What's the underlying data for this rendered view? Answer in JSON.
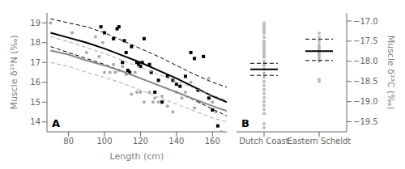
{
  "chart_data": [
    {
      "type": "scatter",
      "annotation": "A",
      "xlabel": "Length (cm)",
      "ylabel": "Muscle δ¹⁵N (‰)",
      "xlim": [
        68,
        168
      ],
      "ylim": [
        13.5,
        19.5
      ],
      "xticks": [
        80,
        100,
        120,
        140,
        160
      ],
      "yticks": [
        14,
        15,
        16,
        17,
        18,
        19
      ],
      "grid": false,
      "series": [
        {
          "type": "scatter",
          "marker": "circle",
          "color": "#aaaaaa",
          "x": [
            70,
            82,
            90,
            95,
            97,
            99,
            100,
            103,
            105,
            106,
            108,
            110,
            112,
            114,
            115,
            117,
            118,
            120,
            122,
            125,
            127,
            128,
            130,
            132,
            135,
            138,
            140,
            143,
            145,
            148,
            150,
            153,
            158,
            160,
            162,
            165
          ],
          "values": [
            19.0,
            18.5,
            17.5,
            18.3,
            17.3,
            18.0,
            16.5,
            16.5,
            16.9,
            16.5,
            16.6,
            16.8,
            16.4,
            16.5,
            15.4,
            16.5,
            15.5,
            15.5,
            15.0,
            15.5,
            15.0,
            15.2,
            15.0,
            15.3,
            14.8,
            14.5,
            15.5,
            15.2,
            15.5,
            16.0,
            14.7,
            15.0,
            16.2,
            15.0,
            14.5,
            13.5
          ]
        },
        {
          "type": "scatter",
          "marker": "square",
          "color": "#000000",
          "x": [
            98,
            100,
            105,
            107,
            108,
            110,
            111,
            112,
            113,
            114,
            115,
            118,
            119,
            120,
            121,
            122,
            125,
            126,
            128,
            130,
            132,
            135,
            138,
            140,
            142,
            145,
            148,
            150,
            152,
            155,
            158,
            160,
            163
          ],
          "values": [
            18.8,
            18.5,
            18.2,
            18.7,
            18.8,
            17.0,
            18.1,
            17.5,
            16.6,
            16.5,
            17.8,
            17.0,
            16.9,
            16.8,
            17.0,
            18.2,
            16.9,
            16.5,
            15.5,
            16.1,
            15.0,
            16.3,
            16.1,
            15.9,
            15.8,
            16.3,
            17.5,
            17.2,
            15.6,
            17.3,
            15.2,
            14.6,
            13.8
          ]
        },
        {
          "type": "line",
          "line_style": "solid",
          "color": "#000000",
          "x": [
            70,
            80,
            90,
            100,
            110,
            120,
            130,
            140,
            150,
            160,
            168
          ],
          "values": [
            18.5,
            18.25,
            18.0,
            17.7,
            17.35,
            17.0,
            16.6,
            16.2,
            15.75,
            15.3,
            15.0
          ]
        },
        {
          "type": "line",
          "line_style": "dashed",
          "color": "#000000",
          "x": [
            70,
            80,
            90,
            100,
            110,
            120,
            130,
            140,
            150,
            160,
            168
          ],
          "values": [
            19.2,
            19.0,
            18.8,
            18.5,
            18.1,
            17.7,
            17.3,
            16.85,
            16.4,
            16.0,
            15.75
          ]
        },
        {
          "type": "line",
          "line_style": "dashed",
          "color": "#000000",
          "x": [
            70,
            80,
            90,
            100,
            110,
            120,
            130,
            140,
            150,
            160,
            168
          ],
          "values": [
            17.8,
            17.5,
            17.2,
            16.9,
            16.55,
            16.2,
            15.85,
            15.5,
            15.1,
            14.65,
            14.3
          ]
        },
        {
          "type": "line",
          "line_style": "solid",
          "color": "#888888",
          "x": [
            70,
            80,
            90,
            100,
            110,
            120,
            130,
            140,
            150,
            160,
            168
          ],
          "values": [
            17.6,
            17.4,
            17.1,
            16.85,
            16.55,
            16.2,
            15.85,
            15.5,
            15.15,
            14.8,
            14.55
          ]
        },
        {
          "type": "line",
          "line_style": "dashed",
          "color": "#aaaaaa",
          "x": [
            70,
            80,
            90,
            100,
            110,
            120,
            130,
            140,
            150,
            160,
            168
          ],
          "values": [
            18.3,
            18.05,
            17.75,
            17.45,
            17.1,
            16.75,
            16.4,
            16.05,
            15.7,
            15.35,
            15.1
          ]
        },
        {
          "type": "line",
          "line_style": "dashed",
          "color": "#aaaaaa",
          "x": [
            70,
            80,
            90,
            100,
            110,
            120,
            130,
            140,
            150,
            160,
            168
          ],
          "values": [
            17.0,
            16.8,
            16.5,
            16.25,
            15.95,
            15.6,
            15.25,
            14.9,
            14.55,
            14.2,
            14.0
          ]
        }
      ]
    },
    {
      "type": "strip",
      "annotation": "B",
      "ylabel": "Muscle δ¹³C (‰)",
      "categories": [
        "Dutch Coast",
        "Eastern Scheldt"
      ],
      "ylim": [
        -19.75,
        -16.8
      ],
      "yticks": [
        {
          "value": -17.0,
          "label": "−17.0"
        },
        {
          "value": -17.5,
          "label": "−17.5"
        },
        {
          "value": -18.0,
          "label": "−18.0"
        },
        {
          "value": -18.5,
          "label": "−18.5"
        },
        {
          "value": -19.0,
          "label": "−19.0"
        },
        {
          "value": -19.5,
          "label": "−19.5"
        }
      ],
      "grid": false,
      "color": "#bbbbbb",
      "values": [
        [
          -17.05,
          -17.1,
          -17.15,
          -17.2,
          -17.25,
          -17.3,
          -17.4,
          -17.5,
          -17.55,
          -17.6,
          -17.65,
          -17.7,
          -17.75,
          -17.8,
          -17.85,
          -17.9,
          -18.0,
          -18.05,
          -18.1,
          -18.2,
          -18.3,
          -18.4,
          -18.5,
          -18.6,
          -18.7,
          -18.8,
          -18.9,
          -19.0,
          -19.1,
          -19.2,
          -19.3,
          -19.55,
          -19.65
        ],
        [
          -17.3,
          -17.4,
          -17.5,
          -17.6,
          -17.65,
          -17.7,
          -17.75,
          -17.8,
          -17.85,
          -17.9,
          -17.95,
          -18.0,
          -18.45,
          -18.5
        ]
      ],
      "mean": [
        -18.2,
        -17.75
      ],
      "ci_upper": [
        -18.05,
        -17.45
      ],
      "ci_lower": [
        -18.35,
        -17.98
      ]
    }
  ]
}
